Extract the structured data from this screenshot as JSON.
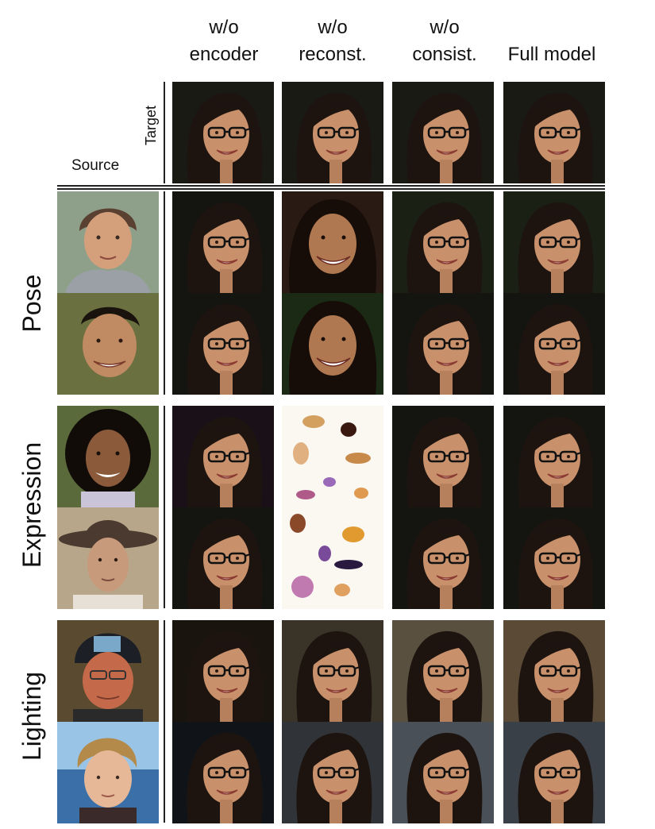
{
  "header": {
    "columns": [
      {
        "line1": "w/o",
        "line2": "encoder"
      },
      {
        "line1": "w/o",
        "line2": "reconst."
      },
      {
        "line1": "w/o",
        "line2": "consist."
      },
      {
        "line1": "",
        "line2": "Full model"
      }
    ],
    "target_label": "Target",
    "source_label": "Source"
  },
  "row_groups": [
    {
      "label": "Pose"
    },
    {
      "label": "Expression"
    },
    {
      "label": "Lighting"
    }
  ],
  "colors": {
    "background": "#ffffff",
    "divider": "#222222",
    "hair_dark": "#1d1410",
    "skin": "#c9916b",
    "glasses": "#111111"
  }
}
